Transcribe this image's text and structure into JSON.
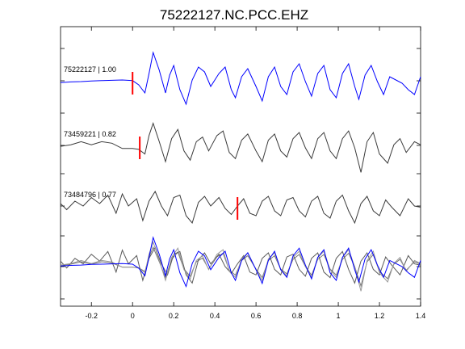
{
  "chart_data": {
    "type": "line",
    "title": "75222127.NC.PCC.EHZ",
    "xlabel": "",
    "ylabel": "",
    "xlim": [
      -0.35,
      1.4
    ],
    "xticks": [
      -0.2,
      0,
      0.2,
      0.4,
      0.6,
      0.8,
      1,
      1.2,
      1.4
    ],
    "xtick_labels": [
      "-0.2",
      "0",
      "0.2",
      "0.4",
      "0.6",
      "0.8",
      "1",
      "1.2",
      "1.4"
    ],
    "grid": false,
    "legend": "none",
    "traces": [
      {
        "label": "75222127 | 1.00",
        "pick": 0.0,
        "color": "#0000ff",
        "points": [
          [
            -0.35,
            0.02
          ],
          [
            -0.3,
            0.04
          ],
          [
            -0.25,
            0.05
          ],
          [
            -0.2,
            0.07
          ],
          [
            -0.15,
            0.08
          ],
          [
            -0.1,
            0.09
          ],
          [
            -0.05,
            0.1
          ],
          [
            0,
            0.08
          ],
          [
            0.03,
            -0.05
          ],
          [
            0.06,
            -0.3
          ],
          [
            0.08,
            0.3
          ],
          [
            0.1,
            0.95
          ],
          [
            0.13,
            0.4
          ],
          [
            0.16,
            -0.3
          ],
          [
            0.18,
            0.25
          ],
          [
            0.2,
            0.55
          ],
          [
            0.23,
            -0.2
          ],
          [
            0.26,
            -0.65
          ],
          [
            0.29,
            0.1
          ],
          [
            0.32,
            0.5
          ],
          [
            0.35,
            0.35
          ],
          [
            0.38,
            -0.1
          ],
          [
            0.42,
            0.3
          ],
          [
            0.45,
            0.5
          ],
          [
            0.48,
            -0.2
          ],
          [
            0.5,
            -0.45
          ],
          [
            0.53,
            0.2
          ],
          [
            0.56,
            0.45
          ],
          [
            0.6,
            -0.1
          ],
          [
            0.63,
            -0.55
          ],
          [
            0.66,
            0.2
          ],
          [
            0.69,
            0.5
          ],
          [
            0.72,
            -0.1
          ],
          [
            0.75,
            -0.35
          ],
          [
            0.78,
            0.35
          ],
          [
            0.81,
            0.6
          ],
          [
            0.84,
            0.05
          ],
          [
            0.87,
            -0.4
          ],
          [
            0.9,
            0.3
          ],
          [
            0.93,
            0.55
          ],
          [
            0.96,
            -0.2
          ],
          [
            0.99,
            -0.45
          ],
          [
            1.02,
            0.3
          ],
          [
            1.05,
            0.6
          ],
          [
            1.08,
            -0.1
          ],
          [
            1.1,
            -0.5
          ],
          [
            1.13,
            0.25
          ],
          [
            1.16,
            0.55
          ],
          [
            1.19,
            0.05
          ],
          [
            1.22,
            -0.35
          ],
          [
            1.25,
            0.2
          ],
          [
            1.28,
            0.1
          ],
          [
            1.31,
            0.0
          ],
          [
            1.34,
            -0.2
          ],
          [
            1.37,
            -0.35
          ],
          [
            1.4,
            0.2
          ]
        ]
      },
      {
        "label": "73459221 | 0.82",
        "pick": 0.035,
        "color": "#3a3a3a",
        "points": [
          [
            -0.35,
            0.05
          ],
          [
            -0.3,
            0.1
          ],
          [
            -0.25,
            0.2
          ],
          [
            -0.2,
            0.1
          ],
          [
            -0.15,
            0.2
          ],
          [
            -0.1,
            0.15
          ],
          [
            -0.05,
            -0.02
          ],
          [
            0,
            -0.02
          ],
          [
            0.03,
            -0.05
          ],
          [
            0.06,
            -0.2
          ],
          [
            0.08,
            0.4
          ],
          [
            0.1,
            0.8
          ],
          [
            0.13,
            0.2
          ],
          [
            0.16,
            -0.45
          ],
          [
            0.19,
            0.3
          ],
          [
            0.22,
            0.6
          ],
          [
            0.25,
            -0.1
          ],
          [
            0.28,
            -0.4
          ],
          [
            0.31,
            0.2
          ],
          [
            0.34,
            0.35
          ],
          [
            0.37,
            -0.1
          ],
          [
            0.41,
            0.4
          ],
          [
            0.44,
            0.55
          ],
          [
            0.47,
            -0.15
          ],
          [
            0.5,
            -0.35
          ],
          [
            0.53,
            0.25
          ],
          [
            0.56,
            0.45
          ],
          [
            0.6,
            -0.1
          ],
          [
            0.63,
            -0.45
          ],
          [
            0.66,
            0.25
          ],
          [
            0.69,
            0.45
          ],
          [
            0.72,
            -0.1
          ],
          [
            0.75,
            -0.3
          ],
          [
            0.78,
            0.3
          ],
          [
            0.81,
            0.5
          ],
          [
            0.84,
            0.0
          ],
          [
            0.87,
            -0.35
          ],
          [
            0.9,
            0.3
          ],
          [
            0.93,
            0.5
          ],
          [
            0.96,
            -0.1
          ],
          [
            0.99,
            -0.35
          ],
          [
            1.02,
            0.3
          ],
          [
            1.05,
            0.55
          ],
          [
            1.08,
            0.0
          ],
          [
            1.11,
            -0.8
          ],
          [
            1.14,
            0.2
          ],
          [
            1.17,
            0.5
          ],
          [
            1.2,
            -0.2
          ],
          [
            1.24,
            -0.5
          ],
          [
            1.27,
            0.1
          ],
          [
            1.3,
            0.3
          ],
          [
            1.33,
            -0.15
          ],
          [
            1.37,
            0.2
          ],
          [
            1.4,
            0.1
          ]
        ]
      },
      {
        "label": "73484796 | 0.77",
        "pick": 0.51,
        "color": "#3a3a3a",
        "points": [
          [
            -0.35,
            0.2
          ],
          [
            -0.32,
            -0.05
          ],
          [
            -0.28,
            0.3
          ],
          [
            -0.24,
            0.1
          ],
          [
            -0.2,
            0.45
          ],
          [
            -0.16,
            0.2
          ],
          [
            -0.12,
            0.55
          ],
          [
            -0.08,
            -0.2
          ],
          [
            -0.05,
            0.6
          ],
          [
            -0.02,
            0.1
          ],
          [
            0.02,
            0.4
          ],
          [
            0.05,
            -0.5
          ],
          [
            0.08,
            0.3
          ],
          [
            0.11,
            0.7
          ],
          [
            0.14,
            0.1
          ],
          [
            0.17,
            -0.3
          ],
          [
            0.2,
            0.45
          ],
          [
            0.23,
            0.55
          ],
          [
            0.26,
            -0.3
          ],
          [
            0.29,
            -0.6
          ],
          [
            0.32,
            0.25
          ],
          [
            0.35,
            0.5
          ],
          [
            0.38,
            0.1
          ],
          [
            0.42,
            0.45
          ],
          [
            0.45,
            0.0
          ],
          [
            0.48,
            -0.25
          ],
          [
            0.51,
            0.1
          ],
          [
            0.54,
            0.4
          ],
          [
            0.57,
            -0.2
          ],
          [
            0.6,
            -0.3
          ],
          [
            0.63,
            0.3
          ],
          [
            0.66,
            0.5
          ],
          [
            0.69,
            -0.1
          ],
          [
            0.72,
            -0.3
          ],
          [
            0.75,
            0.35
          ],
          [
            0.78,
            0.45
          ],
          [
            0.81,
            -0.1
          ],
          [
            0.84,
            -0.35
          ],
          [
            0.87,
            0.3
          ],
          [
            0.9,
            0.5
          ],
          [
            0.93,
            -0.2
          ],
          [
            0.96,
            -0.4
          ],
          [
            0.99,
            0.3
          ],
          [
            1.02,
            0.55
          ],
          [
            1.05,
            -0.1
          ],
          [
            1.08,
            -0.6
          ],
          [
            1.11,
            0.2
          ],
          [
            1.14,
            0.5
          ],
          [
            1.17,
            -0.1
          ],
          [
            1.2,
            -0.3
          ],
          [
            1.23,
            0.35
          ],
          [
            1.26,
            0.05
          ],
          [
            1.3,
            -0.3
          ],
          [
            1.34,
            0.4
          ],
          [
            1.37,
            0.1
          ],
          [
            1.4,
            0.05
          ]
        ]
      }
    ],
    "overlay_trace_count": 3
  }
}
